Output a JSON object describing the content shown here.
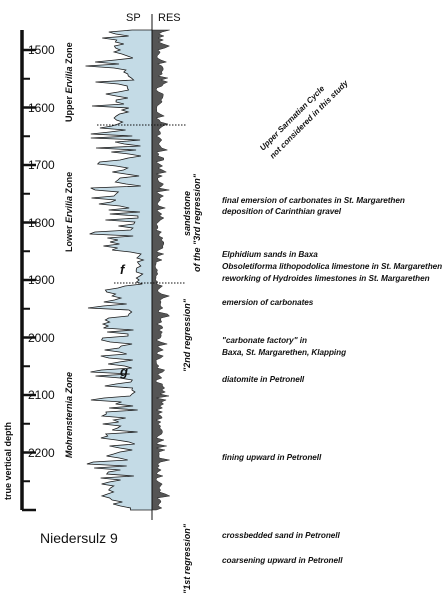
{
  "header": {
    "sp": "SP",
    "res": "RES"
  },
  "depth_axis": {
    "title": "true vertical depth",
    "ticks": [
      "1500",
      "1600",
      "1700",
      "1800",
      "1900",
      "2000",
      "2100",
      "2200"
    ]
  },
  "zones": {
    "upper_prefix": "Upper",
    "upper_name": "Ervilia",
    "upper_suffix": "Zone",
    "lower_prefix": "Lower",
    "lower_name": "Ervilia",
    "lower_suffix": "Zone",
    "mohrensternia": "Mohrensternia Zone"
  },
  "markers": {
    "f": "f",
    "g": "g"
  },
  "regressions": {
    "third_line1": "sandstone",
    "third_line2": "of the \"3rd regression\"",
    "second": "\"2nd regression\"",
    "first": "\"1st regression\""
  },
  "upper_sarmatian": {
    "line1": "Upper Sarmatian Cycle",
    "line2": "not considered in this study"
  },
  "notes": [
    "final emersion of carbonates in St. Margarethen",
    "deposition of Carinthian gravel",
    "Elphidium sands in Baxa",
    "Obsoletiforma lithopodolica limestone in St. Margarethen",
    "reworking of Hydroides limestones in St. Margarethen",
    "emersion of carbonates",
    "\"carbonate factory\" in",
    "Baxa, St. Margarethen, Klapping",
    "diatomite in Petronell",
    "fining upward in Petronell",
    "crossbedded sand in Petronell",
    "coarsening upward in Petronell"
  ],
  "well_name": "Niedersulz 9",
  "colors": {
    "sp_fill": "#c4dbe6",
    "res_fill": "#555555",
    "line": "#1a1a1a"
  }
}
